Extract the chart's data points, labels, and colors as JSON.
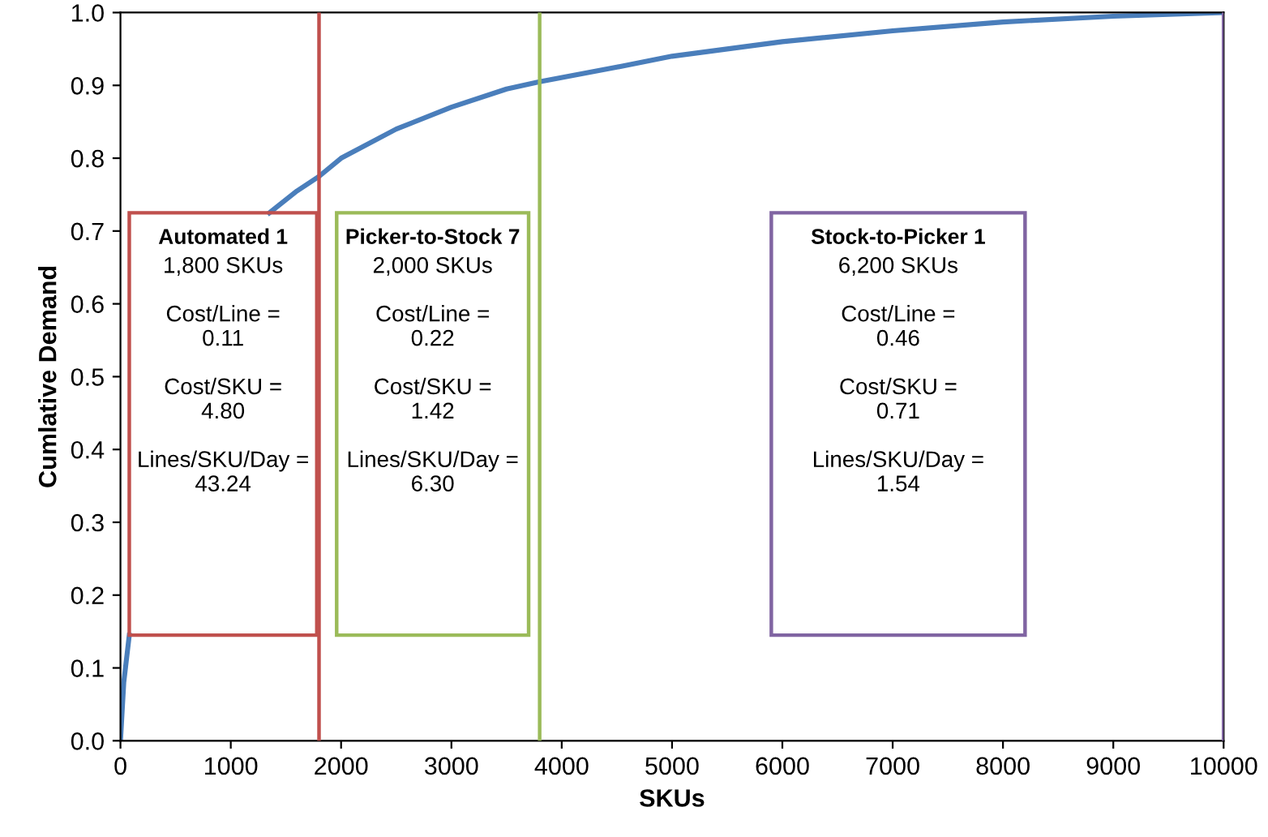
{
  "chart_data": {
    "type": "line",
    "xlabel": "SKUs",
    "ylabel": "Cumlative Demand",
    "x": [
      0,
      30,
      80,
      700,
      1350,
      1600,
      1800,
      2000,
      2500,
      3000,
      3500,
      3800,
      4500,
      5000,
      6000,
      7000,
      8000,
      9000,
      10000
    ],
    "series": [
      {
        "color": "#4a7ebb",
        "values": [
          0,
          0.08,
          0.145,
          null,
          0.725,
          0.755,
          0.775,
          0.8,
          0.84,
          0.87,
          0.895,
          0.905,
          0.925,
          0.94,
          0.96,
          0.975,
          0.987,
          0.995,
          1.0
        ]
      }
    ],
    "xlim": [
      0,
      10000
    ],
    "ylim": [
      0,
      1
    ],
    "xticks": [
      0,
      1000,
      2000,
      3000,
      4000,
      5000,
      6000,
      7000,
      8000,
      9000,
      10000
    ],
    "yticks": [
      {
        "value": 0,
        "label": "0.0"
      },
      {
        "value": 0.1,
        "label": "0.1"
      },
      {
        "value": 0.2,
        "label": "0.2"
      },
      {
        "value": 0.3,
        "label": "0.3"
      },
      {
        "value": 0.4,
        "label": "0.4"
      },
      {
        "value": 0.5,
        "label": "0.5"
      },
      {
        "value": 0.6,
        "label": "0.6"
      },
      {
        "value": 0.7,
        "label": "0.7"
      },
      {
        "value": 0.8,
        "label": "0.8"
      },
      {
        "value": 0.9,
        "label": "0.9"
      },
      {
        "value": 1,
        "label": "1.0"
      }
    ],
    "ref_lines": [
      {
        "axis": "x",
        "value": 1800,
        "color": "#c0504d"
      },
      {
        "axis": "x",
        "value": 3800,
        "color": "#9bbb59"
      },
      {
        "axis": "x",
        "value": 10000,
        "color": "#8064a2"
      }
    ],
    "annotations": [
      "Automated 1\n1,800 SKUs\n\nCost/Line =\n0.11\n\nCost/SKU =\n4.80\n\nLines/SKU/Day =\n43.24",
      "Picker-to-Stock 7\n2,000 SKUs\n\nCost/Line =\n0.22\n\nCost/SKU =\n1.42\n\nLines/SKU/Day =\n6.30",
      "Stock-to-Picker 1\n6,200 SKUs\n\nCost/Line =\n0.46\n\nCost/SKU =\n0.71\n\nLines/SKU/Day =\n1.54"
    ],
    "grid": false,
    "marker": "none",
    "line_style": "solid"
  }
}
